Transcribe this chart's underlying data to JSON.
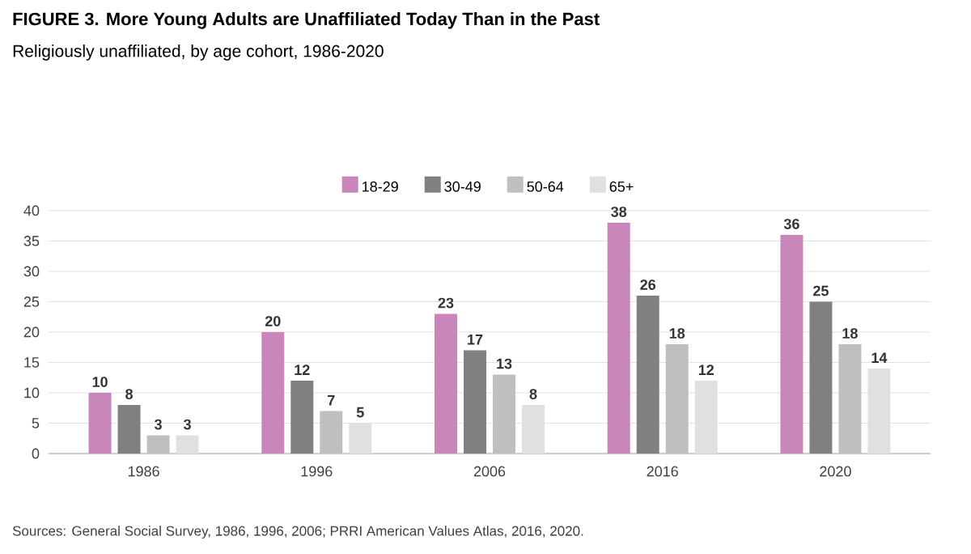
{
  "chart_data": {
    "type": "bar",
    "title": "FIGURE 3. More Young Adults are Unaffiliated Today Than in the Past",
    "subtitle": "Religiously unaffiliated, by age cohort, 1986-2020",
    "categories": [
      "1986",
      "1996",
      "2006",
      "2016",
      "2020"
    ],
    "series": [
      {
        "name": "18-29",
        "color": "#c986bb",
        "values": [
          10,
          20,
          23,
          38,
          36
        ]
      },
      {
        "name": "30-49",
        "color": "#808080",
        "values": [
          8,
          12,
          17,
          26,
          25
        ]
      },
      {
        "name": "50-64",
        "color": "#bfbfbf",
        "values": [
          3,
          7,
          13,
          18,
          18
        ]
      },
      {
        "name": "65+",
        "color": "#e0e0e0",
        "values": [
          3,
          5,
          8,
          12,
          14
        ]
      }
    ],
    "ylim": [
      0,
      40
    ],
    "yticks": [
      0,
      5,
      10,
      15,
      20,
      25,
      30,
      35,
      40
    ],
    "grid": "y",
    "legend": "top",
    "data_labels": true,
    "annotations": [
      "Sources: General Social Survey, 1986, 1996, 2006; PRRI American Values Atlas, 2016, 2020."
    ]
  }
}
